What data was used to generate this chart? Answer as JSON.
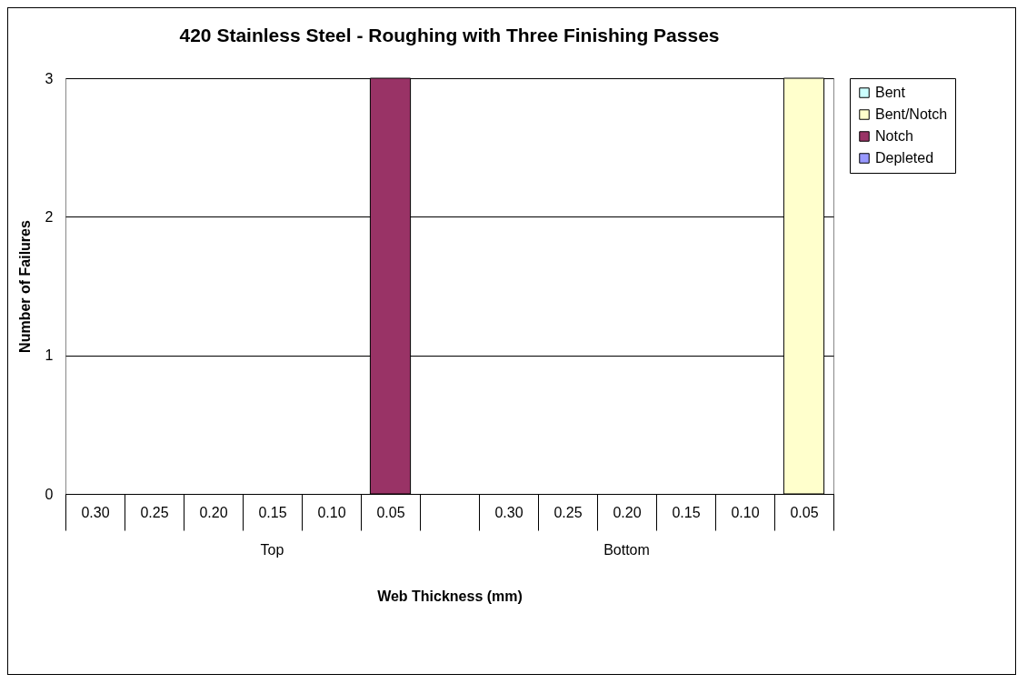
{
  "chart_data": {
    "type": "bar",
    "title": "420 Stainless Steel - Roughing with Three Finishing Passes",
    "xlabel": "Web Thickness (mm)",
    "ylabel": "Number of Failures",
    "categories": [
      "0.30",
      "0.25",
      "0.20",
      "0.15",
      "0.10",
      "0.05",
      null,
      "0.30",
      "0.25",
      "0.20",
      "0.15",
      "0.10",
      "0.05"
    ],
    "stacked": true,
    "series": [
      {
        "name": "Bent",
        "color": "#ccffff",
        "values": [
          0,
          0,
          0,
          0,
          0,
          0,
          null,
          0,
          0,
          0,
          0,
          0,
          0
        ]
      },
      {
        "name": "Bent/Notch",
        "color": "#ffffcc",
        "values": [
          0,
          0,
          0,
          0,
          0,
          0,
          null,
          0,
          0,
          0,
          0,
          0,
          3
        ]
      },
      {
        "name": "Notch",
        "color": "#993366",
        "values": [
          0,
          0,
          0,
          0,
          0,
          3,
          null,
          0,
          0,
          0,
          0,
          0,
          0
        ]
      },
      {
        "name": "Depleted",
        "color": "#9999ff",
        "values": [
          0,
          0,
          0,
          0,
          0,
          0,
          null,
          0,
          0,
          0,
          0,
          0,
          0
        ]
      }
    ],
    "ylim": [
      0,
      3
    ],
    "yticks": [
      0,
      1,
      2,
      3
    ],
    "grid": "y",
    "legend": "right",
    "annotations": [
      "Top",
      "Bottom"
    ]
  }
}
